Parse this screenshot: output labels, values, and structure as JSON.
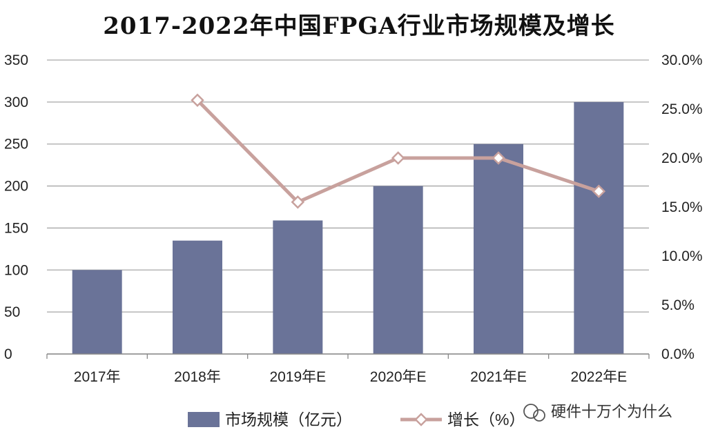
{
  "chart_data": {
    "type": "bar",
    "title": "2017-2022年中国FPGA行业市场规模及增长",
    "categories": [
      "2017年",
      "2018年",
      "2019年E",
      "2020年E",
      "2021年E",
      "2022年E"
    ],
    "series": [
      {
        "name": "市场规模（亿元）",
        "type": "bar",
        "axis": "left",
        "values": [
          100,
          135,
          159,
          200,
          250,
          300
        ],
        "color": "#6A7398"
      },
      {
        "name": "增长（%）",
        "type": "line",
        "axis": "right",
        "values": [
          null,
          0.259,
          0.155,
          0.2,
          0.2,
          0.166
        ],
        "color": "#C8A19D"
      }
    ],
    "y_left": {
      "min": 0,
      "max": 350,
      "step": 50,
      "ticks": [
        "0",
        "50",
        "100",
        "150",
        "200",
        "250",
        "300",
        "350"
      ]
    },
    "y_right": {
      "min": 0,
      "max": 0.3,
      "step": 0.05,
      "ticks": [
        "0.0%",
        "5.0%",
        "10.0%",
        "15.0%",
        "20.0%",
        "25.0%",
        "30.0%"
      ]
    },
    "grid": true,
    "legend_position": "bottom"
  },
  "watermark": "硬件十万个为什么",
  "colors": {
    "gridline": "#A6A6A6",
    "bar": "#6A7398",
    "line": "#C8A19D"
  }
}
